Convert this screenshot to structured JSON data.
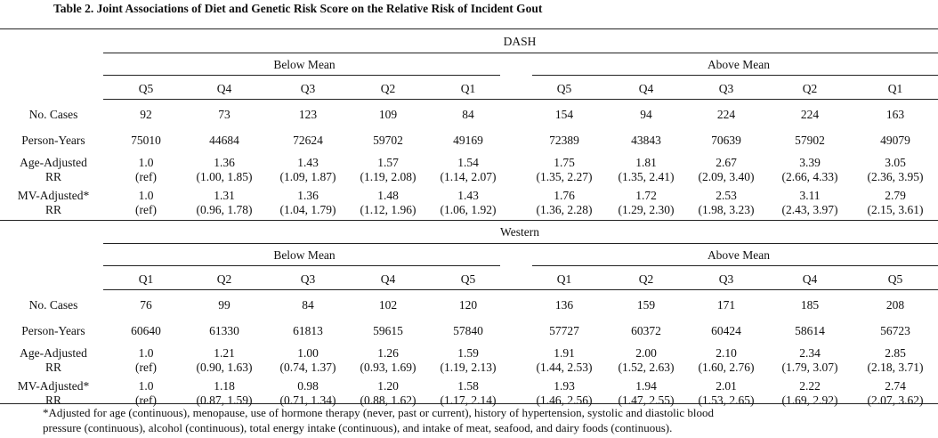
{
  "title": "Table 2. Joint Associations of Diet and Genetic Risk Score on the Relative Risk of Incident Gout",
  "groups": {
    "below": "Below Mean",
    "above": "Above Mean"
  },
  "panels": [
    {
      "name": "DASH",
      "quintiles": [
        "Q5",
        "Q4",
        "Q3",
        "Q2",
        "Q1",
        "Q5",
        "Q4",
        "Q3",
        "Q2",
        "Q1"
      ],
      "no_cases": [
        "92",
        "73",
        "123",
        "109",
        "84",
        "154",
        "94",
        "224",
        "224",
        "163"
      ],
      "person_years": [
        "75010",
        "44684",
        "72624",
        "59702",
        "49169",
        "72389",
        "43843",
        "70639",
        "57902",
        "49079"
      ],
      "age_rr": [
        "1.0",
        "1.36",
        "1.43",
        "1.57",
        "1.54",
        "1.75",
        "1.81",
        "2.67",
        "3.39",
        "3.05"
      ],
      "age_ci": [
        "(ref)",
        "(1.00, 1.85)",
        "(1.09, 1.87)",
        "(1.19, 2.08)",
        "(1.14, 2.07)",
        "(1.35, 2.27)",
        "(1.35, 2.41)",
        "(2.09, 3.40)",
        "(2.66, 4.33)",
        "(2.36, 3.95)"
      ],
      "mv_rr": [
        "1.0",
        "1.31",
        "1.36",
        "1.48",
        "1.43",
        "1.76",
        "1.72",
        "2.53",
        "3.11",
        "2.79"
      ],
      "mv_ci": [
        "(ref)",
        "(0.96, 1.78)",
        "(1.04, 1.79)",
        "(1.12, 1.96)",
        "(1.06, 1.92)",
        "(1.36, 2.28)",
        "(1.29, 2.30)",
        "(1.98, 3.23)",
        "(2.43, 3.97)",
        "(2.15, 3.61)"
      ]
    },
    {
      "name": "Western",
      "quintiles": [
        "Q1",
        "Q2",
        "Q3",
        "Q4",
        "Q5",
        "Q1",
        "Q2",
        "Q3",
        "Q4",
        "Q5"
      ],
      "no_cases": [
        "76",
        "99",
        "84",
        "102",
        "120",
        "136",
        "159",
        "171",
        "185",
        "208"
      ],
      "person_years": [
        "60640",
        "61330",
        "61813",
        "59615",
        "57840",
        "57727",
        "60372",
        "60424",
        "58614",
        "56723"
      ],
      "age_rr": [
        "1.0",
        "1.21",
        "1.00",
        "1.26",
        "1.59",
        "1.91",
        "2.00",
        "2.10",
        "2.34",
        "2.85"
      ],
      "age_ci": [
        "(ref)",
        "(0.90, 1.63)",
        "(0.74, 1.37)",
        "(0.93, 1.69)",
        "(1.19, 2.13)",
        "(1.44, 2.53)",
        "(1.52, 2.63)",
        "(1.60, 2.76)",
        "(1.79, 3.07)",
        "(2.18, 3.71)"
      ],
      "mv_rr": [
        "1.0",
        "1.18",
        "0.98",
        "1.20",
        "1.58",
        "1.93",
        "1.94",
        "2.01",
        "2.22",
        "2.74"
      ],
      "mv_ci": [
        "(ref)",
        "(0.87, 1.59)",
        "(0.71, 1.34)",
        "(0.88, 1.62)",
        "(1.17, 2.14)",
        "(1.46, 2.56)",
        "(1.47, 2.55)",
        "(1.53, 2.65)",
        "(1.69, 2.92)",
        "(2.07, 3.62)"
      ]
    }
  ],
  "row_labels": {
    "no_cases": "No. Cases",
    "person_years": "Person-Years",
    "age_adjusted": "Age-Adjusted",
    "mv_adjusted": "MV-Adjusted*",
    "rr": "RR"
  },
  "footnote": {
    "line1": "*Adjusted for age (continuous), menopause, use of hormone therapy (never, past or current), history of hypertension, systolic and diastolic blood",
    "line2": "pressure (continuous), alcohol (continuous), total energy intake (continuous), and intake of meat, seafood, and dairy foods (continuous)."
  }
}
